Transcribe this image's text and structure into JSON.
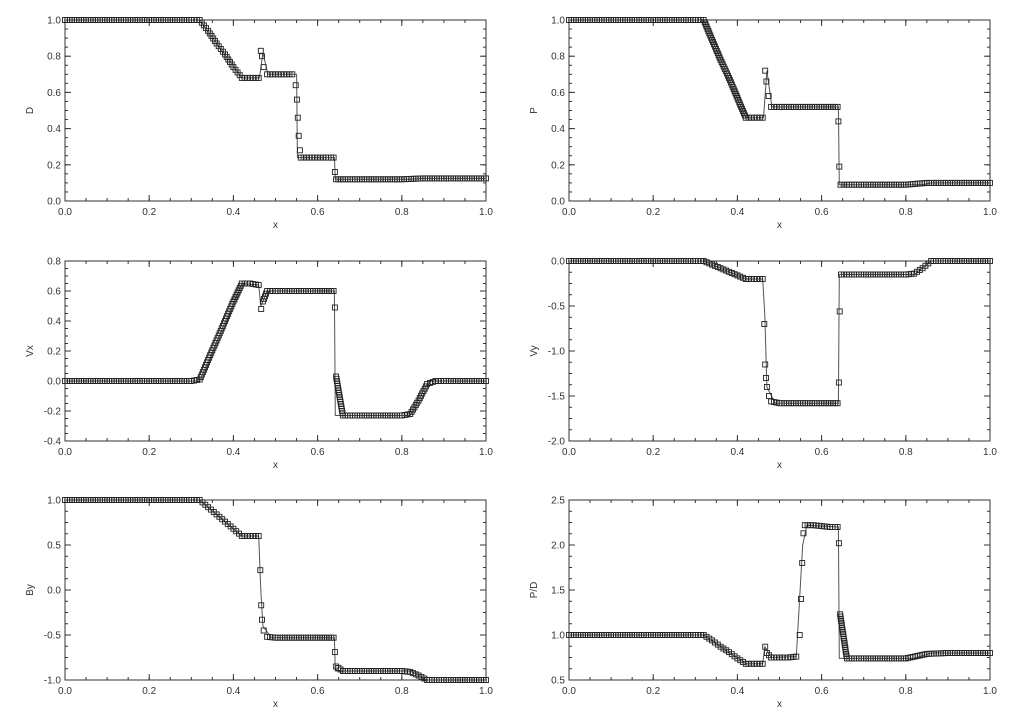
{
  "chart_data": [
    {
      "type": "scatter",
      "ylabel": "D",
      "xlabel": "x",
      "xlim": [
        0,
        1
      ],
      "ylim": [
        0,
        1
      ],
      "xticks": [
        "0.0",
        "0.2",
        "0.4",
        "0.6",
        "0.8",
        "1.0"
      ],
      "yticks": [
        "0.0",
        "0.2",
        "0.4",
        "0.6",
        "0.8",
        "1.0"
      ],
      "xtick_values": [
        0,
        0.2,
        0.4,
        0.6,
        0.8,
        1.0
      ],
      "ytick_values": [
        0,
        0.2,
        0.4,
        0.6,
        0.8,
        1.0
      ],
      "series": [
        {
          "kind": "line",
          "x": [
            0,
            0.32,
            0.42,
            0.445,
            0.462,
            0.47,
            0.482,
            0.55,
            0.552,
            0.56,
            0.562,
            0.64,
            0.642,
            0.82,
            0.85,
            1.0
          ],
          "y": [
            1.0,
            1.0,
            0.68,
            0.68,
            0.68,
            0.82,
            0.7,
            0.7,
            0.24,
            0.24,
            0.24,
            0.24,
            0.12,
            0.12,
            0.125,
            0.125
          ]
        },
        {
          "kind": "markers",
          "x": [
            0,
            0.05,
            0.1,
            0.15,
            0.2,
            0.25,
            0.3,
            0.32,
            0.34,
            0.36,
            0.38,
            0.4,
            0.42,
            0.44,
            0.46,
            0.465,
            0.468,
            0.472,
            0.48,
            0.5,
            0.52,
            0.54,
            0.548,
            0.551,
            0.553,
            0.555,
            0.558,
            0.56,
            0.58,
            0.6,
            0.62,
            0.638,
            0.641,
            0.644,
            0.66,
            0.7,
            0.75,
            0.8,
            0.85,
            0.9,
            0.95,
            1.0
          ],
          "y": [
            1.0,
            1.0,
            1.0,
            1.0,
            1.0,
            1.0,
            1.0,
            1.0,
            0.94,
            0.87,
            0.81,
            0.74,
            0.68,
            0.68,
            0.68,
            0.83,
            0.8,
            0.74,
            0.7,
            0.7,
            0.7,
            0.7,
            0.64,
            0.56,
            0.46,
            0.36,
            0.28,
            0.24,
            0.24,
            0.24,
            0.24,
            0.24,
            0.16,
            0.12,
            0.12,
            0.12,
            0.12,
            0.12,
            0.125,
            0.125,
            0.125,
            0.125
          ]
        }
      ]
    },
    {
      "type": "scatter",
      "ylabel": "P",
      "xlabel": "x",
      "xlim": [
        0,
        1
      ],
      "ylim": [
        0,
        1
      ],
      "xticks": [
        "0.0",
        "0.2",
        "0.4",
        "0.6",
        "0.8",
        "1.0"
      ],
      "yticks": [
        "0.0",
        "0.2",
        "0.4",
        "0.6",
        "0.8",
        "1.0"
      ],
      "xtick_values": [
        0,
        0.2,
        0.4,
        0.6,
        0.8,
        1.0
      ],
      "ytick_values": [
        0,
        0.2,
        0.4,
        0.6,
        0.8,
        1.0
      ],
      "series": [
        {
          "kind": "line",
          "x": [
            0,
            0.32,
            0.42,
            0.45,
            0.462,
            0.47,
            0.482,
            0.64,
            0.642,
            0.84,
            0.86,
            1.0
          ],
          "y": [
            1.0,
            1.0,
            0.46,
            0.46,
            0.46,
            0.72,
            0.52,
            0.52,
            0.09,
            0.09,
            0.1,
            0.1
          ]
        },
        {
          "kind": "markers",
          "x": [
            0,
            0.05,
            0.1,
            0.15,
            0.2,
            0.25,
            0.3,
            0.32,
            0.34,
            0.36,
            0.38,
            0.4,
            0.42,
            0.44,
            0.46,
            0.466,
            0.469,
            0.474,
            0.48,
            0.5,
            0.55,
            0.6,
            0.638,
            0.64,
            0.642,
            0.645,
            0.66,
            0.7,
            0.75,
            0.8,
            0.85,
            0.9,
            0.95,
            1.0
          ],
          "y": [
            1.0,
            1.0,
            1.0,
            1.0,
            1.0,
            1.0,
            1.0,
            1.0,
            0.89,
            0.78,
            0.68,
            0.57,
            0.46,
            0.46,
            0.46,
            0.72,
            0.66,
            0.58,
            0.52,
            0.52,
            0.52,
            0.52,
            0.52,
            0.44,
            0.19,
            0.09,
            0.09,
            0.09,
            0.09,
            0.09,
            0.1,
            0.1,
            0.1,
            0.1
          ]
        }
      ]
    },
    {
      "type": "scatter",
      "ylabel": "Vx",
      "xlabel": "x",
      "xlim": [
        0,
        1
      ],
      "ylim": [
        -0.4,
        0.8
      ],
      "xticks": [
        "0.0",
        "0.2",
        "0.4",
        "0.6",
        "0.8",
        "1.0"
      ],
      "yticks": [
        "-0.4",
        "-0.2",
        "0.0",
        "0.2",
        "0.4",
        "0.6",
        "0.8"
      ],
      "xtick_values": [
        0,
        0.2,
        0.4,
        0.6,
        0.8,
        1.0
      ],
      "ytick_values": [
        -0.4,
        -0.2,
        0,
        0.2,
        0.4,
        0.6,
        0.8
      ],
      "series": [
        {
          "kind": "line",
          "x": [
            0,
            0.32,
            0.42,
            0.46,
            0.465,
            0.48,
            0.64,
            0.642,
            0.82,
            0.86,
            0.87,
            1.0
          ],
          "y": [
            0,
            0,
            0.65,
            0.64,
            0.5,
            0.6,
            0.6,
            -0.23,
            -0.23,
            -0.02,
            0,
            0
          ]
        },
        {
          "kind": "markers",
          "x": [
            0,
            0.05,
            0.1,
            0.15,
            0.2,
            0.25,
            0.3,
            0.32,
            0.34,
            0.36,
            0.38,
            0.4,
            0.42,
            0.44,
            0.46,
            0.466,
            0.47,
            0.48,
            0.5,
            0.55,
            0.6,
            0.638,
            0.641,
            0.644,
            0.66,
            0.7,
            0.75,
            0.8,
            0.82,
            0.84,
            0.86,
            0.88,
            0.9,
            0.95,
            1.0
          ],
          "y": [
            0,
            0,
            0,
            0,
            0,
            0,
            0,
            0.01,
            0.14,
            0.27,
            0.4,
            0.53,
            0.65,
            0.65,
            0.64,
            0.48,
            0.53,
            0.6,
            0.6,
            0.6,
            0.6,
            0.6,
            0.49,
            0.03,
            -0.23,
            -0.23,
            -0.23,
            -0.23,
            -0.22,
            -0.13,
            -0.02,
            0,
            0,
            0,
            0
          ]
        }
      ]
    },
    {
      "type": "scatter",
      "ylabel": "Vy",
      "xlabel": "x",
      "xlim": [
        0,
        1
      ],
      "ylim": [
        -2.0,
        0.0
      ],
      "xticks": [
        "0.0",
        "0.2",
        "0.4",
        "0.6",
        "0.8",
        "1.0"
      ],
      "yticks": [
        "-2.0",
        "-1.5",
        "-1.0",
        "-0.5",
        "0.0"
      ],
      "xtick_values": [
        0,
        0.2,
        0.4,
        0.6,
        0.8,
        1.0
      ],
      "ytick_values": [
        -2.0,
        -1.5,
        -1.0,
        -0.5,
        0.0
      ],
      "series": [
        {
          "kind": "line",
          "x": [
            0,
            0.32,
            0.42,
            0.46,
            0.465,
            0.47,
            0.49,
            0.64,
            0.642,
            0.82,
            0.86,
            1.0
          ],
          "y": [
            0,
            0,
            -0.2,
            -0.2,
            -0.6,
            -1.4,
            -1.58,
            -1.58,
            -0.15,
            -0.15,
            0,
            0
          ]
        },
        {
          "kind": "markers",
          "x": [
            0,
            0.05,
            0.1,
            0.15,
            0.2,
            0.25,
            0.3,
            0.32,
            0.34,
            0.36,
            0.38,
            0.4,
            0.42,
            0.44,
            0.46,
            0.464,
            0.466,
            0.468,
            0.47,
            0.475,
            0.48,
            0.5,
            0.55,
            0.6,
            0.638,
            0.641,
            0.643,
            0.646,
            0.66,
            0.7,
            0.75,
            0.8,
            0.82,
            0.84,
            0.86,
            0.9,
            0.95,
            1.0
          ],
          "y": [
            0,
            0,
            0,
            0,
            0,
            0,
            0,
            0,
            -0.04,
            -0.08,
            -0.12,
            -0.16,
            -0.2,
            -0.2,
            -0.2,
            -0.7,
            -1.15,
            -1.3,
            -1.4,
            -1.5,
            -1.56,
            -1.58,
            -1.58,
            -1.58,
            -1.58,
            -1.35,
            -0.56,
            -0.15,
            -0.15,
            -0.15,
            -0.15,
            -0.15,
            -0.14,
            -0.08,
            0,
            0,
            0,
            0
          ]
        }
      ]
    },
    {
      "type": "scatter",
      "ylabel": "By",
      "xlabel": "x",
      "xlim": [
        0,
        1
      ],
      "ylim": [
        -1.0,
        1.0
      ],
      "xticks": [
        "0.0",
        "0.2",
        "0.4",
        "0.6",
        "0.8",
        "1.0"
      ],
      "yticks": [
        "-1.0",
        "-0.5",
        "0.0",
        "0.5",
        "1.0"
      ],
      "xtick_values": [
        0,
        0.2,
        0.4,
        0.6,
        0.8,
        1.0
      ],
      "ytick_values": [
        -1.0,
        -0.5,
        0,
        0.5,
        1.0
      ],
      "series": [
        {
          "kind": "line",
          "x": [
            0,
            0.32,
            0.42,
            0.46,
            0.465,
            0.47,
            0.49,
            0.64,
            0.642,
            0.82,
            0.86,
            1.0
          ],
          "y": [
            1.0,
            1.0,
            0.6,
            0.6,
            0.0,
            -0.4,
            -0.53,
            -0.53,
            -0.9,
            -0.9,
            -1.0,
            -1.0
          ]
        },
        {
          "kind": "markers",
          "x": [
            0,
            0.05,
            0.1,
            0.15,
            0.2,
            0.25,
            0.3,
            0.32,
            0.34,
            0.36,
            0.38,
            0.4,
            0.42,
            0.44,
            0.46,
            0.464,
            0.466,
            0.468,
            0.472,
            0.48,
            0.5,
            0.55,
            0.6,
            0.638,
            0.641,
            0.644,
            0.66,
            0.7,
            0.75,
            0.8,
            0.82,
            0.84,
            0.86,
            0.9,
            0.95,
            1.0
          ],
          "y": [
            1.0,
            1.0,
            1.0,
            1.0,
            1.0,
            1.0,
            1.0,
            1.0,
            0.92,
            0.84,
            0.76,
            0.68,
            0.6,
            0.6,
            0.6,
            0.22,
            -0.17,
            -0.33,
            -0.45,
            -0.52,
            -0.53,
            -0.53,
            -0.53,
            -0.53,
            -0.69,
            -0.85,
            -0.9,
            -0.9,
            -0.9,
            -0.9,
            -0.91,
            -0.95,
            -1.0,
            -1.0,
            -1.0,
            -1.0
          ]
        }
      ]
    },
    {
      "type": "scatter",
      "ylabel": "P/D",
      "xlabel": "x",
      "xlim": [
        0,
        1
      ],
      "ylim": [
        0.5,
        2.5
      ],
      "xticks": [
        "0.0",
        "0.2",
        "0.4",
        "0.6",
        "0.8",
        "1.0"
      ],
      "yticks": [
        "0.5",
        "1.0",
        "1.5",
        "2.0",
        "2.5"
      ],
      "xtick_values": [
        0,
        0.2,
        0.4,
        0.6,
        0.8,
        1.0
      ],
      "ytick_values": [
        0.5,
        1.0,
        1.5,
        2.0,
        2.5
      ],
      "series": [
        {
          "kind": "line",
          "x": [
            0,
            0.32,
            0.42,
            0.46,
            0.465,
            0.48,
            0.54,
            0.555,
            0.565,
            0.64,
            0.642,
            0.82,
            0.86,
            1.0
          ],
          "y": [
            1.0,
            1.0,
            0.68,
            0.68,
            0.87,
            0.75,
            0.76,
            2.0,
            2.22,
            2.2,
            0.74,
            0.74,
            0.8,
            0.8
          ]
        },
        {
          "kind": "markers",
          "x": [
            0,
            0.05,
            0.1,
            0.15,
            0.2,
            0.25,
            0.3,
            0.32,
            0.34,
            0.36,
            0.38,
            0.4,
            0.42,
            0.44,
            0.46,
            0.466,
            0.47,
            0.48,
            0.5,
            0.52,
            0.54,
            0.548,
            0.551,
            0.554,
            0.557,
            0.56,
            0.58,
            0.6,
            0.62,
            0.638,
            0.641,
            0.644,
            0.66,
            0.7,
            0.75,
            0.8,
            0.85,
            0.9,
            0.95,
            1.0
          ],
          "y": [
            1.0,
            1.0,
            1.0,
            1.0,
            1.0,
            1.0,
            1.0,
            1.0,
            0.94,
            0.87,
            0.81,
            0.74,
            0.68,
            0.68,
            0.68,
            0.87,
            0.8,
            0.75,
            0.75,
            0.75,
            0.76,
            1.0,
            1.4,
            1.8,
            2.13,
            2.22,
            2.22,
            2.21,
            2.2,
            2.2,
            2.02,
            1.23,
            0.74,
            0.74,
            0.74,
            0.74,
            0.79,
            0.8,
            0.8,
            0.8
          ]
        }
      ]
    }
  ]
}
